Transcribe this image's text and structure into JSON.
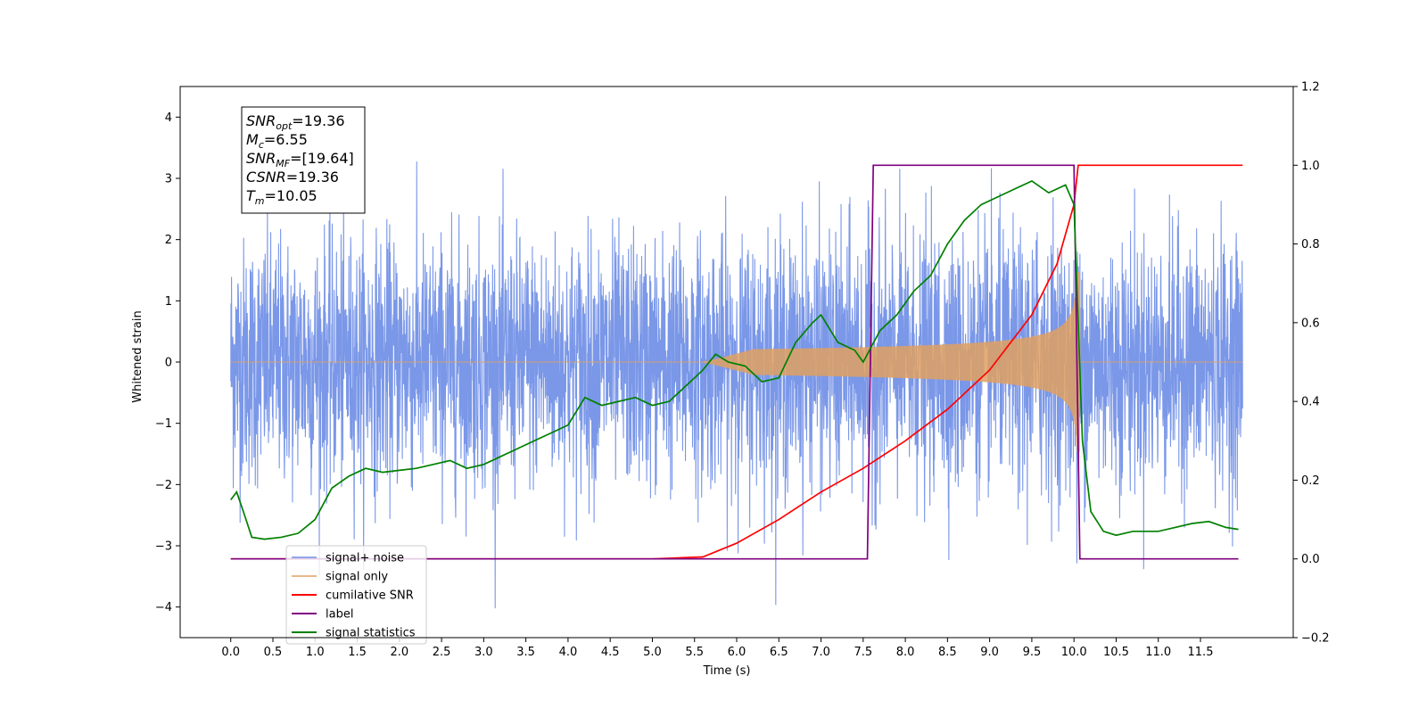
{
  "chart_data": {
    "type": "line",
    "xlabel": "Time (s)",
    "ylabel": "Whitened strain",
    "xlim": [
      -0.6,
      12.6
    ],
    "ylim": [
      -4.5,
      4.5
    ],
    "ylim_right": [
      -0.2,
      1.2
    ],
    "x_ticks": [
      0.0,
      0.5,
      1.0,
      1.5,
      2.0,
      2.5,
      3.0,
      3.5,
      4.0,
      4.5,
      5.0,
      5.5,
      6.0,
      6.5,
      7.0,
      7.5,
      8.0,
      8.5,
      9.0,
      9.5,
      10.0,
      10.5,
      11.0,
      11.5
    ],
    "x_tick_labels": [
      "0.0",
      "0.5",
      "1.0",
      "1.5",
      "2.0",
      "2.5",
      "3.0",
      "3.5",
      "4.0",
      "4.5",
      "5.0",
      "5.5",
      "6.0",
      "6.5",
      "7.0",
      "7.5",
      "8.0",
      "8.5",
      "9.0",
      "9.5",
      "10.0",
      "10.5",
      "11.0",
      "11.5"
    ],
    "y_ticks_left": [
      -4,
      -3,
      -2,
      -1,
      0,
      1,
      2,
      3,
      4
    ],
    "y_tick_labels_left": [
      "−4",
      "−3",
      "−2",
      "−1",
      "0",
      "1",
      "2",
      "3",
      "4"
    ],
    "y_ticks_right": [
      -0.2,
      0.0,
      0.2,
      0.4,
      0.6,
      0.8,
      1.0,
      1.2
    ],
    "y_tick_labels_right": [
      "−0.2",
      "0.0",
      "0.2",
      "0.4",
      "0.6",
      "0.8",
      "1.0",
      "1.2"
    ],
    "grid": false,
    "legend_position": "bottom-left",
    "annotation": [
      {
        "base": "SNR",
        "sub": "opt",
        "rest": "=19.36"
      },
      {
        "base": "M",
        "sub": "c",
        "rest": "=6.55"
      },
      {
        "base": "SNR",
        "sub": "MF",
        "rest": "=[19.64]"
      },
      {
        "base": "CSNR",
        "sub": "",
        "rest": "=19.36"
      },
      {
        "base": "T",
        "sub": "m",
        "rest": "=10.05"
      }
    ],
    "series": [
      {
        "name": "signal+ noise",
        "axis": "left",
        "color": "#6f8ee6",
        "kind": "noise",
        "x_range": [
          0.0,
          12.0
        ],
        "sigma": 1.0
      },
      {
        "name": "signal only",
        "axis": "left",
        "color": "#e0a060",
        "kind": "chirp",
        "x_range": [
          0.0,
          12.0
        ],
        "onset": 5.6,
        "merger": 10.05,
        "peak_amplitude": 1.6
      },
      {
        "name": "cumilative SNR",
        "axis": "right",
        "color": "#ff0000",
        "x": [
          0.0,
          5.0,
          5.6,
          6.0,
          6.5,
          7.0,
          7.5,
          8.0,
          8.5,
          9.0,
          9.5,
          9.8,
          10.0,
          10.05,
          12.0
        ],
        "y": [
          0.0,
          0.0,
          0.005,
          0.04,
          0.1,
          0.17,
          0.23,
          0.3,
          0.38,
          0.48,
          0.62,
          0.75,
          0.9,
          1.0,
          1.0
        ]
      },
      {
        "name": "label",
        "axis": "right",
        "color": "#800080",
        "x": [
          0.0,
          7.55,
          7.62,
          10.0,
          10.07,
          11.95
        ],
        "y": [
          0.0,
          0.0,
          1.0,
          1.0,
          0.0,
          0.0
        ]
      },
      {
        "name": "signal statistics",
        "axis": "right",
        "color": "#008000",
        "x": [
          0.0,
          0.07,
          0.15,
          0.25,
          0.4,
          0.6,
          0.8,
          1.0,
          1.2,
          1.4,
          1.6,
          1.8,
          2.0,
          2.2,
          2.4,
          2.6,
          2.8,
          3.0,
          3.2,
          3.4,
          3.6,
          3.8,
          4.0,
          4.2,
          4.4,
          4.6,
          4.8,
          5.0,
          5.2,
          5.4,
          5.6,
          5.75,
          5.9,
          6.1,
          6.3,
          6.5,
          6.7,
          6.9,
          7.0,
          7.2,
          7.4,
          7.5,
          7.7,
          7.9,
          8.1,
          8.3,
          8.5,
          8.7,
          8.9,
          9.1,
          9.3,
          9.5,
          9.7,
          9.9,
          10.0,
          10.1,
          10.2,
          10.35,
          10.5,
          10.7,
          11.0,
          11.2,
          11.4,
          11.6,
          11.8,
          11.95
        ],
        "y": [
          0.15,
          0.17,
          0.12,
          0.055,
          0.05,
          0.055,
          0.065,
          0.1,
          0.18,
          0.21,
          0.23,
          0.22,
          0.225,
          0.23,
          0.24,
          0.25,
          0.23,
          0.24,
          0.26,
          0.28,
          0.3,
          0.32,
          0.34,
          0.41,
          0.39,
          0.4,
          0.41,
          0.39,
          0.4,
          0.44,
          0.48,
          0.52,
          0.5,
          0.49,
          0.45,
          0.46,
          0.55,
          0.6,
          0.62,
          0.55,
          0.53,
          0.5,
          0.58,
          0.62,
          0.68,
          0.72,
          0.8,
          0.86,
          0.9,
          0.92,
          0.94,
          0.96,
          0.93,
          0.95,
          0.9,
          0.3,
          0.12,
          0.07,
          0.06,
          0.07,
          0.07,
          0.08,
          0.09,
          0.095,
          0.08,
          0.075
        ]
      }
    ]
  }
}
